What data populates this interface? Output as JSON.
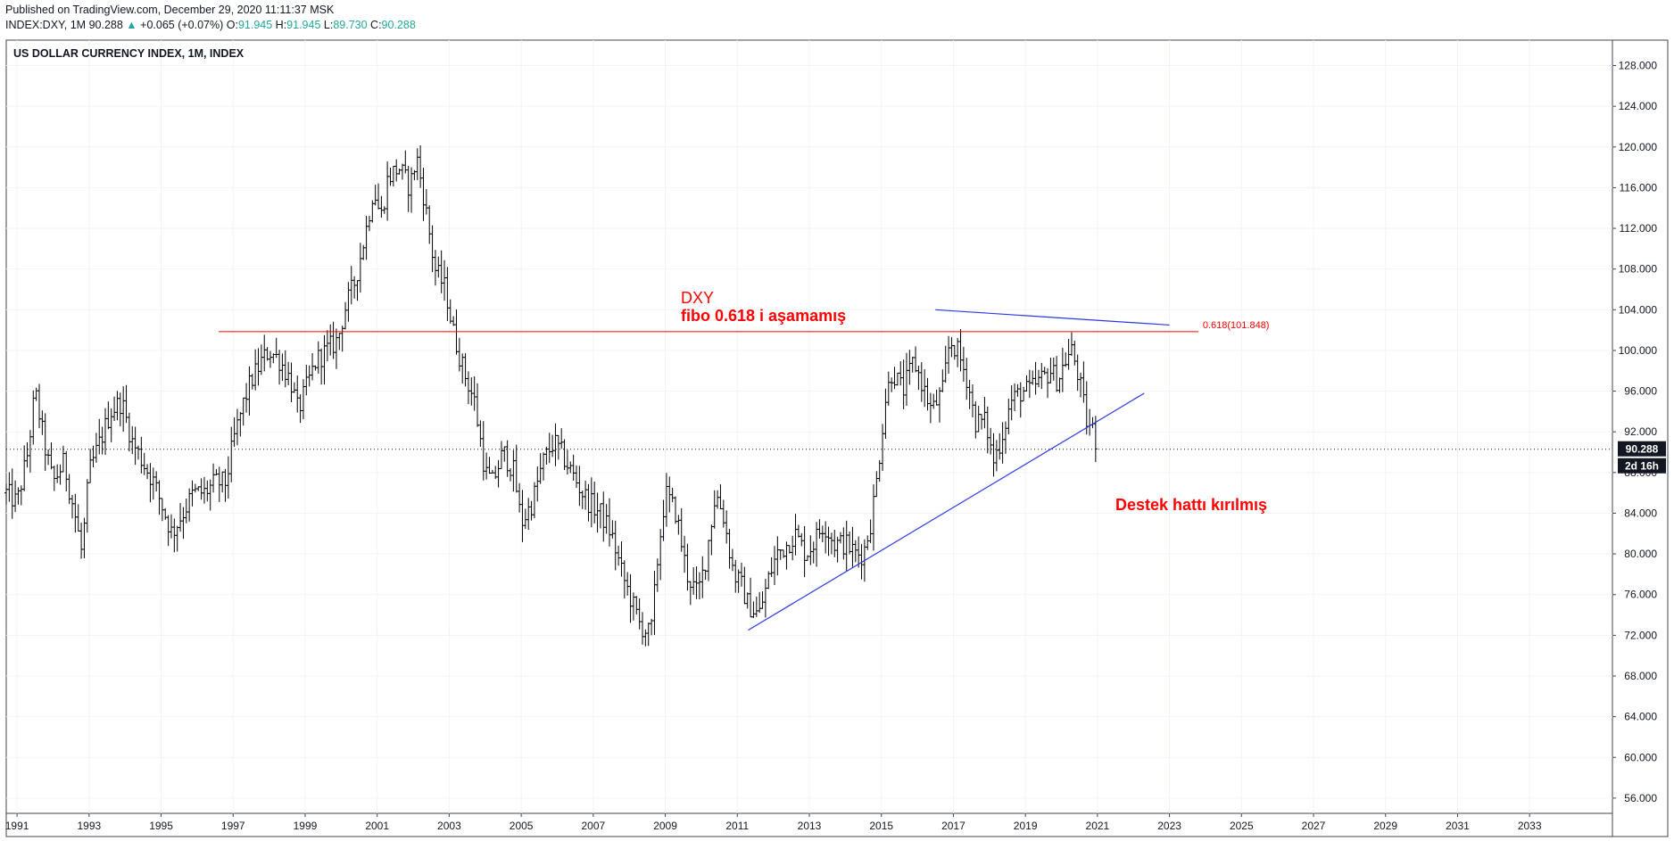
{
  "header": {
    "published": "Published on TradingView.com, December 29, 2020 11:11:37 MSK",
    "symbol": "INDEX:DXY, 1M",
    "last": "90.288",
    "change": "+0.065 (+0.07%)",
    "o_label": "O:",
    "o": "91.945",
    "h_label": "H:",
    "h": "91.945",
    "l_label": "L:",
    "l": "89.730",
    "c_label": "C:",
    "c": "90.288"
  },
  "colors": {
    "bars": "#000000",
    "fibo_line": "#ff0000",
    "trend_lines": "#2b3ae0",
    "up_text": "#26a69a",
    "annotation": "#ff0000"
  },
  "chart_data": {
    "type": "ohlc",
    "title": "US DOLLAR CURRENCY INDEX, 1M, INDEX",
    "x_ticks": [
      "1991",
      "1993",
      "1995",
      "1997",
      "1999",
      "2001",
      "2003",
      "2005",
      "2007",
      "2009",
      "2011",
      "2013",
      "2015",
      "2017",
      "2019",
      "2021",
      "2023",
      "2025",
      "2027",
      "2029",
      "2031",
      "2033"
    ],
    "y_ticks": [
      "128.000",
      "124.000",
      "120.000",
      "116.000",
      "112.000",
      "108.000",
      "104.000",
      "100.000",
      "96.000",
      "92.000",
      "88.000",
      "84.000",
      "80.000",
      "76.000",
      "72.000",
      "68.000",
      "64.000",
      "60.000",
      "56.000"
    ],
    "xlim": [
      1990.7,
      2035.3
    ],
    "ylim": [
      54.5,
      130.5
    ],
    "grid": true,
    "last_price": 90.288,
    "last_price_label": "90.288",
    "countdown_label": "2d 16h",
    "price_path": [
      [
        1990.7,
        86
      ],
      [
        1991.0,
        85
      ],
      [
        1991.3,
        90
      ],
      [
        1991.5,
        96
      ],
      [
        1991.8,
        90
      ],
      [
        1992.0,
        87
      ],
      [
        1992.3,
        89
      ],
      [
        1992.6,
        84
      ],
      [
        1992.8,
        80
      ],
      [
        1993.0,
        88
      ],
      [
        1993.3,
        91
      ],
      [
        1993.6,
        94
      ],
      [
        1993.9,
        95
      ],
      [
        1994.2,
        91
      ],
      [
        1994.5,
        89
      ],
      [
        1994.8,
        87
      ],
      [
        1995.1,
        84
      ],
      [
        1995.3,
        82
      ],
      [
        1995.6,
        84
      ],
      [
        1995.9,
        86
      ],
      [
        1996.2,
        86
      ],
      [
        1996.5,
        87
      ],
      [
        1996.8,
        87
      ],
      [
        1997.0,
        91
      ],
      [
        1997.3,
        95
      ],
      [
        1997.5,
        97
      ],
      [
        1997.8,
        99
      ],
      [
        1998.0,
        100
      ],
      [
        1998.3,
        99
      ],
      [
        1998.6,
        97
      ],
      [
        1998.8,
        94
      ],
      [
        1999.0,
        96
      ],
      [
        1999.3,
        99
      ],
      [
        1999.6,
        100
      ],
      [
        1999.9,
        101
      ],
      [
        2000.1,
        104
      ],
      [
        2000.4,
        107
      ],
      [
        2000.7,
        112
      ],
      [
        2000.9,
        116
      ],
      [
        2001.1,
        113
      ],
      [
        2001.3,
        117
      ],
      [
        2001.6,
        118
      ],
      [
        2001.9,
        116
      ],
      [
        2002.1,
        119
      ],
      [
        2002.3,
        115
      ],
      [
        2002.6,
        108
      ],
      [
        2002.9,
        106
      ],
      [
        2003.1,
        102
      ],
      [
        2003.4,
        98
      ],
      [
        2003.7,
        95
      ],
      [
        2004.0,
        88
      ],
      [
        2004.2,
        87
      ],
      [
        2004.5,
        90
      ],
      [
        2004.8,
        88
      ],
      [
        2005.0,
        83
      ],
      [
        2005.3,
        85
      ],
      [
        2005.6,
        89
      ],
      [
        2005.9,
        91
      ],
      [
        2006.1,
        90
      ],
      [
        2006.4,
        88
      ],
      [
        2006.7,
        86
      ],
      [
        2006.9,
        85
      ],
      [
        2007.2,
        84
      ],
      [
        2007.5,
        82
      ],
      [
        2007.8,
        78
      ],
      [
        2008.0,
        76
      ],
      [
        2008.3,
        73
      ],
      [
        2008.6,
        72
      ],
      [
        2008.8,
        80
      ],
      [
        2009.0,
        86
      ],
      [
        2009.3,
        84
      ],
      [
        2009.6,
        78
      ],
      [
        2009.9,
        76
      ],
      [
        2010.1,
        79
      ],
      [
        2010.4,
        86
      ],
      [
        2010.6,
        84
      ],
      [
        2010.9,
        78
      ],
      [
        2011.1,
        77
      ],
      [
        2011.3,
        75
      ],
      [
        2011.6,
        74
      ],
      [
        2011.9,
        78
      ],
      [
        2012.1,
        80
      ],
      [
        2012.4,
        81
      ],
      [
        2012.6,
        82
      ],
      [
        2012.9,
        80
      ],
      [
        2013.1,
        81
      ],
      [
        2013.4,
        83
      ],
      [
        2013.7,
        81
      ],
      [
        2014.0,
        81
      ],
      [
        2014.3,
        80
      ],
      [
        2014.5,
        80
      ],
      [
        2014.7,
        83
      ],
      [
        2014.9,
        88
      ],
      [
        2015.1,
        95
      ],
      [
        2015.3,
        98
      ],
      [
        2015.6,
        96
      ],
      [
        2015.9,
        99
      ],
      [
        2016.1,
        97
      ],
      [
        2016.4,
        94
      ],
      [
        2016.7,
        96
      ],
      [
        2016.9,
        101
      ],
      [
        2017.1,
        100
      ],
      [
        2017.4,
        97
      ],
      [
        2017.6,
        93
      ],
      [
        2017.9,
        93
      ],
      [
        2018.1,
        89
      ],
      [
        2018.3,
        91
      ],
      [
        2018.6,
        95
      ],
      [
        2018.9,
        96
      ],
      [
        2019.1,
        96
      ],
      [
        2019.4,
        97
      ],
      [
        2019.7,
        98
      ],
      [
        2019.9,
        97
      ],
      [
        2020.1,
        99
      ],
      [
        2020.3,
        100
      ],
      [
        2020.5,
        97
      ],
      [
        2020.7,
        93
      ],
      [
        2020.9,
        92
      ],
      [
        2021.0,
        90.3
      ]
    ],
    "annotations": {
      "fibo_label": "0.618(101.848)",
      "fibo_level": 101.848,
      "text_dxy": "DXY",
      "text_fibo": "fibo  0.618 i aşamamış",
      "text_support": "Destek hattı kırılmış"
    },
    "fibo_line": {
      "x1": 1996.6,
      "x2": 2023.8,
      "y": 101.848
    },
    "support_line": {
      "x1": 2011.3,
      "y1": 72.5,
      "x2": 2022.3,
      "y2": 95.8
    },
    "resistance_line": {
      "x1": 2016.5,
      "y1": 104.0,
      "x2": 2023.0,
      "y2": 102.5
    }
  }
}
